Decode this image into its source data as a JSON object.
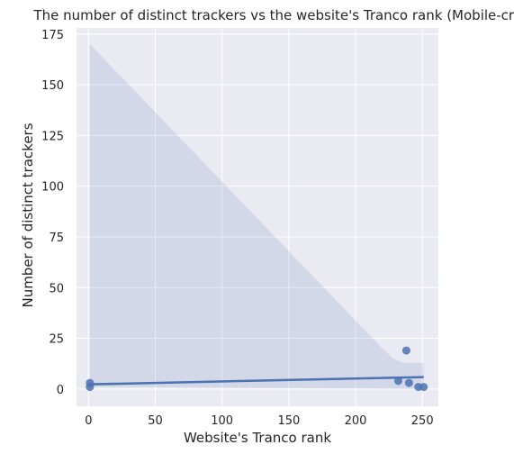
{
  "chart_data": {
    "type": "scatter",
    "title": "The number of distinct trackers vs the website's Tranco rank (Mobile-crawl)",
    "xlabel": "Website's Tranco rank",
    "ylabel": "Number of distinct trackers",
    "xlim": [
      -9,
      262
    ],
    "ylim": [
      -8.5,
      178
    ],
    "xticks": [
      0,
      50,
      100,
      150,
      200,
      250
    ],
    "yticks": [
      0,
      25,
      50,
      75,
      100,
      125,
      150,
      175
    ],
    "grid": true,
    "points": [
      {
        "x": 1,
        "y": 1
      },
      {
        "x": 1,
        "y": 3
      },
      {
        "x": 232,
        "y": 4
      },
      {
        "x": 238,
        "y": 19
      },
      {
        "x": 240,
        "y": 3
      },
      {
        "x": 247,
        "y": 1
      },
      {
        "x": 251,
        "y": 1
      }
    ],
    "regression_line": {
      "x": [
        1,
        251
      ],
      "y": [
        2.3,
        5.9
      ]
    },
    "confidence_band": {
      "upper": [
        [
          1,
          170
        ],
        [
          220,
          20
        ],
        [
          228,
          15
        ],
        [
          236,
          13
        ],
        [
          251,
          13
        ]
      ],
      "lower": [
        [
          251,
          0
        ],
        [
          150,
          0.5
        ],
        [
          1,
          1
        ]
      ]
    },
    "colors": {
      "background": "#eaeaf2",
      "grid": "#ffffff",
      "points": "#4c72b0",
      "line": "#4c72b0",
      "band": "#4c72b0"
    }
  }
}
